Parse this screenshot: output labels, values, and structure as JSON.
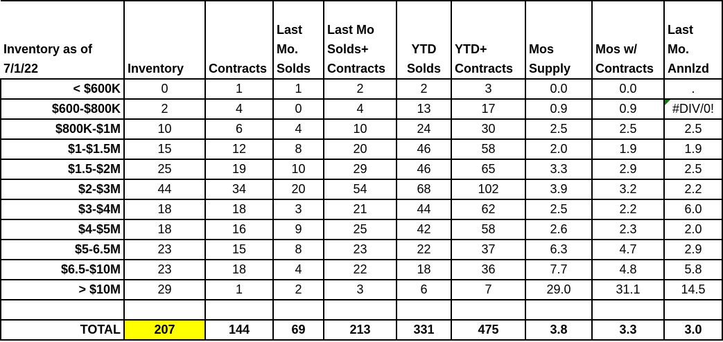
{
  "sheet": {
    "corner_header": "Inventory as of\n7/1/22",
    "columns": [
      "Inventory",
      "Contracts",
      "Last\nMo.\nSolds",
      "Last Mo\nSolds+\nContracts",
      "YTD\nSolds",
      "YTD+\nContracts",
      "Mos\nSupply",
      "Mos w/\nContracts",
      "Last\nMo.\nAnnlzd"
    ],
    "rows": [
      {
        "label": "< $600K",
        "values": [
          "0",
          "1",
          "1",
          "2",
          "2",
          "3",
          "0.0",
          "0.0",
          "."
        ]
      },
      {
        "label": "$600-$800K",
        "values": [
          "2",
          "4",
          "0",
          "4",
          "13",
          "17",
          "0.9",
          "0.9",
          "#DIV/0!"
        ]
      },
      {
        "label": "$800K-$1M",
        "values": [
          "10",
          "6",
          "4",
          "10",
          "24",
          "30",
          "2.5",
          "2.5",
          "2.5"
        ]
      },
      {
        "label": "$1-$1.5M",
        "values": [
          "15",
          "12",
          "8",
          "20",
          "46",
          "58",
          "2.0",
          "1.9",
          "1.9"
        ]
      },
      {
        "label": "$1.5-$2M",
        "values": [
          "25",
          "19",
          "10",
          "29",
          "46",
          "65",
          "3.3",
          "2.9",
          "2.5"
        ]
      },
      {
        "label": "$2-$3M",
        "values": [
          "44",
          "34",
          "20",
          "54",
          "68",
          "102",
          "3.9",
          "3.2",
          "2.2"
        ]
      },
      {
        "label": "$3-$4M",
        "values": [
          "18",
          "18",
          "3",
          "21",
          "44",
          "62",
          "2.5",
          "2.2",
          "6.0"
        ]
      },
      {
        "label": "$4-$5M",
        "values": [
          "18",
          "16",
          "9",
          "25",
          "42",
          "58",
          "2.6",
          "2.3",
          "2.0"
        ]
      },
      {
        "label": "$5-6.5M",
        "values": [
          "23",
          "15",
          "8",
          "23",
          "22",
          "37",
          "6.3",
          "4.7",
          "2.9"
        ]
      },
      {
        "label": "$6.5-$10M",
        "values": [
          "23",
          "18",
          "4",
          "22",
          "18",
          "36",
          "7.7",
          "4.8",
          "5.8"
        ]
      },
      {
        "label": "> $10M",
        "values": [
          "29",
          "1",
          "2",
          "3",
          "6",
          "7",
          "29.0",
          "31.1",
          "14.5"
        ]
      }
    ],
    "error_indicator": {
      "row_index": 1,
      "col_index": 8,
      "color": "#0E7C0E"
    },
    "total_row": {
      "label": "TOTAL",
      "values": [
        "207",
        "144",
        "69",
        "213",
        "331",
        "475",
        "3.8",
        "3.3",
        "3.0"
      ],
      "highlight": {
        "col_index": 0,
        "color": "#FFFF00"
      }
    }
  }
}
